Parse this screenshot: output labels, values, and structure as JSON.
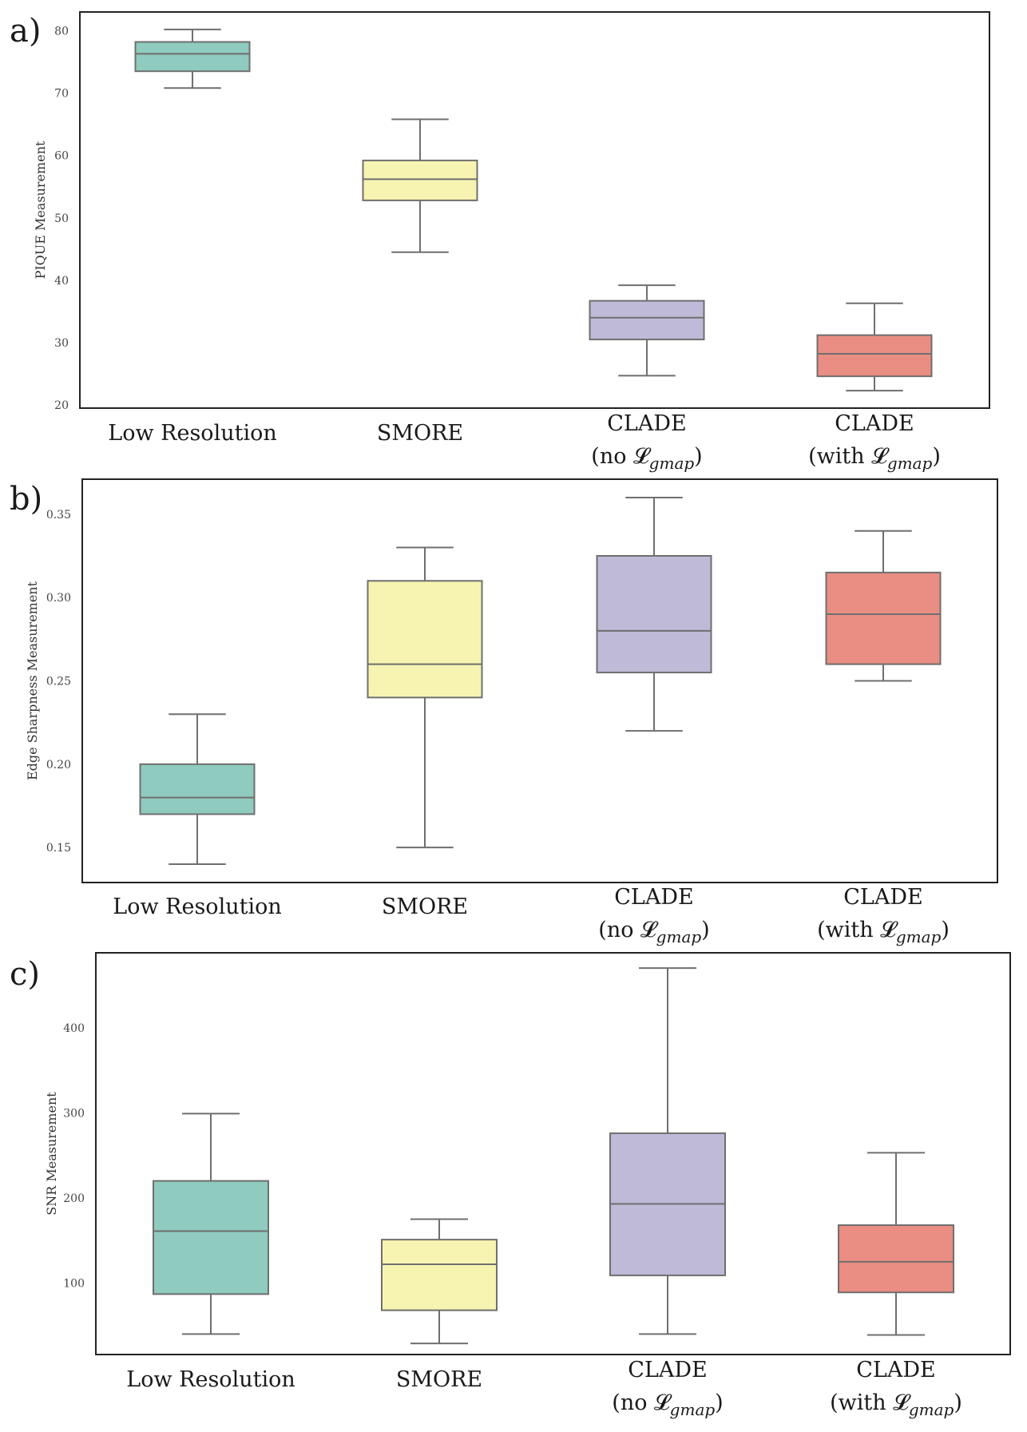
{
  "palette": {
    "low_resolution": "#8fcbbf",
    "smore": "#f7f4b2",
    "clade_no": "#bebad7",
    "clade_with": "#ea8d82",
    "axis": "#222222",
    "whisker": "#6f6f6f"
  },
  "chart_data": [
    {
      "type": "box",
      "panel": "a)",
      "ylabel": "PIQUE Measurement",
      "ylim": [
        19.5,
        83
      ],
      "yticks": [
        20,
        30,
        40,
        50,
        60,
        70,
        80
      ],
      "categories": [
        {
          "line1": "Low Resolution",
          "line2": "",
          "sub": "",
          "close": ""
        },
        {
          "line1": "SMORE",
          "line2": "",
          "sub": "",
          "close": ""
        },
        {
          "line1": "CLADE",
          "line2": "(no 𝓛",
          "sub": "gmap",
          "close": ")"
        },
        {
          "line1": "CLADE",
          "line2": "(with 𝓛",
          "sub": "gmap",
          "close": ")"
        }
      ],
      "boxes": [
        {
          "whislo": 70.8,
          "q1": 73.5,
          "med": 76.3,
          "q3": 78.2,
          "whishi": 80.2
        },
        {
          "whislo": 44.5,
          "q1": 52.8,
          "med": 56.2,
          "q3": 59.2,
          "whishi": 65.8
        },
        {
          "whislo": 24.7,
          "q1": 30.5,
          "med": 34.0,
          "q3": 36.7,
          "whishi": 39.2
        },
        {
          "whislo": 22.3,
          "q1": 24.6,
          "med": 28.2,
          "q3": 31.2,
          "whishi": 36.3
        }
      ]
    },
    {
      "type": "box",
      "panel": "b)",
      "ylabel": "Edge Sharpness Measurement",
      "ylim": [
        0.129,
        0.371
      ],
      "yticks": [
        0.15,
        0.2,
        0.25,
        0.3,
        0.35
      ],
      "ytick_labels": [
        "0.15",
        "0.20",
        "0.25",
        "0.30",
        "0.35"
      ],
      "categories": [
        {
          "line1": "Low Resolution",
          "line2": "",
          "sub": "",
          "close": ""
        },
        {
          "line1": "SMORE",
          "line2": "",
          "sub": "",
          "close": ""
        },
        {
          "line1": "CLADE",
          "line2": "(no 𝓛",
          "sub": "gmap",
          "close": ")"
        },
        {
          "line1": "CLADE",
          "line2": "(with 𝓛",
          "sub": "gmap",
          "close": ")"
        }
      ],
      "boxes": [
        {
          "whislo": 0.14,
          "q1": 0.17,
          "med": 0.18,
          "q3": 0.2,
          "whishi": 0.23
        },
        {
          "whislo": 0.15,
          "q1": 0.24,
          "med": 0.26,
          "q3": 0.31,
          "whishi": 0.33
        },
        {
          "whislo": 0.22,
          "q1": 0.255,
          "med": 0.28,
          "q3": 0.325,
          "whishi": 0.36
        },
        {
          "whislo": 0.25,
          "q1": 0.26,
          "med": 0.29,
          "q3": 0.315,
          "whishi": 0.34
        }
      ]
    },
    {
      "type": "box",
      "panel": "c)",
      "ylabel": "SNR Measurement",
      "ylim": [
        16,
        488
      ],
      "yticks": [
        100,
        200,
        300,
        400
      ],
      "categories": [
        {
          "line1": "Low Resolution",
          "line2": "",
          "sub": "",
          "close": ""
        },
        {
          "line1": "SMORE",
          "line2": "",
          "sub": "",
          "close": ""
        },
        {
          "line1": "CLADE",
          "line2": "(no 𝓛",
          "sub": "gmap",
          "close": ")"
        },
        {
          "line1": "CLADE",
          "line2": "(with 𝓛",
          "sub": "gmap",
          "close": ")"
        }
      ],
      "boxes": [
        {
          "whislo": 40,
          "q1": 87,
          "med": 161,
          "q3": 220,
          "whishi": 299
        },
        {
          "whislo": 29,
          "q1": 68,
          "med": 122,
          "q3": 151,
          "whishi": 175
        },
        {
          "whislo": 40,
          "q1": 109,
          "med": 193,
          "q3": 276,
          "whishi": 470
        },
        {
          "whislo": 39,
          "q1": 89,
          "med": 125,
          "q3": 168,
          "whishi": 253
        }
      ]
    }
  ]
}
